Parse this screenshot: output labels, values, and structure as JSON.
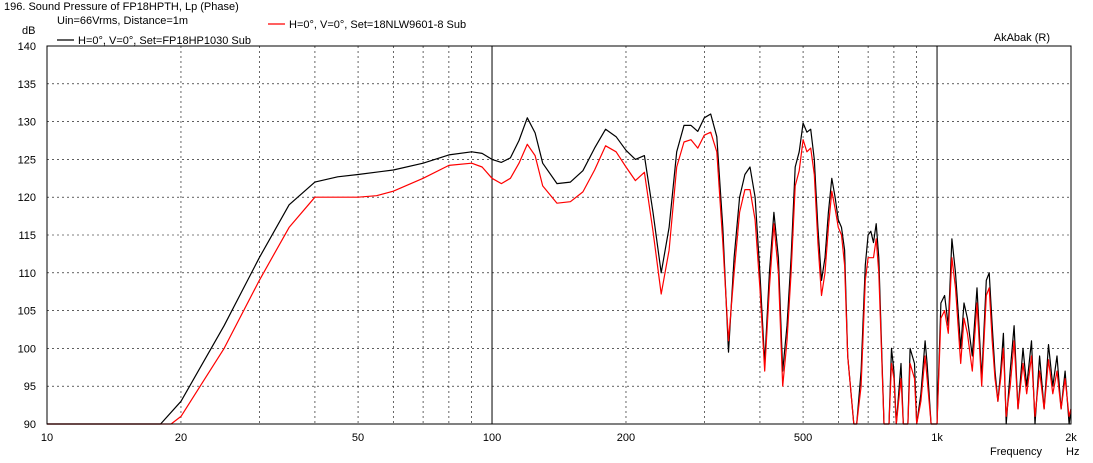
{
  "header": {
    "title": "196. Sound Pressure of FP18HPTH, Lp (Phase)",
    "subtitle": "Uin=66Vrms, Distance=1m",
    "brand": "AkAbak (R)",
    "ylabel": "dB",
    "xlabel": "Frequency",
    "xunit": "Hz"
  },
  "chart_data": {
    "type": "line",
    "title": "196. Sound Pressure of FP18HPTH, Lp (Phase)",
    "subtitle": "Uin=66Vrms, Distance=1m",
    "xlabel": "Frequency",
    "xunit": "Hz",
    "ylabel": "dB",
    "xscale": "log",
    "xlim": [
      10,
      2000
    ],
    "ylim": [
      90,
      140
    ],
    "grid": true,
    "legend_position": "top-left",
    "x_ticks": [
      {
        "value": 10,
        "label": "10"
      },
      {
        "value": 20,
        "label": "20"
      },
      {
        "value": 50,
        "label": "50"
      },
      {
        "value": 100,
        "label": "100"
      },
      {
        "value": 200,
        "label": "200"
      },
      {
        "value": 500,
        "label": "500"
      },
      {
        "value": 1000,
        "label": "1k"
      },
      {
        "value": 2000,
        "label": "2k"
      }
    ],
    "y_ticks": [
      90,
      95,
      100,
      105,
      110,
      115,
      120,
      125,
      130,
      135,
      140
    ],
    "series": [
      {
        "name": "H=0°, V=0°, Set=FP18HP1030 Sub",
        "color": "#000000",
        "points": [
          [
            10,
            90
          ],
          [
            18,
            90
          ],
          [
            20,
            93
          ],
          [
            25,
            103
          ],
          [
            30,
            112
          ],
          [
            35,
            119
          ],
          [
            40,
            122
          ],
          [
            45,
            122.7
          ],
          [
            50,
            123
          ],
          [
            60,
            123.6
          ],
          [
            70,
            124.5
          ],
          [
            80,
            125.6
          ],
          [
            90,
            126
          ],
          [
            95,
            125.8
          ],
          [
            100,
            125
          ],
          [
            105,
            124.6
          ],
          [
            110,
            125.2
          ],
          [
            115,
            127.5
          ],
          [
            120,
            130.5
          ],
          [
            125,
            128.5
          ],
          [
            130,
            124.5
          ],
          [
            140,
            121.8
          ],
          [
            150,
            122
          ],
          [
            160,
            123.5
          ],
          [
            170,
            126.5
          ],
          [
            180,
            129
          ],
          [
            190,
            128
          ],
          [
            200,
            126.2
          ],
          [
            210,
            125
          ],
          [
            220,
            125.5
          ],
          [
            230,
            118
          ],
          [
            240,
            110
          ],
          [
            250,
            116
          ],
          [
            260,
            126
          ],
          [
            270,
            129.5
          ],
          [
            280,
            129.5
          ],
          [
            290,
            128.7
          ],
          [
            300,
            130.5
          ],
          [
            310,
            131
          ],
          [
            320,
            128
          ],
          [
            330,
            116
          ],
          [
            340,
            99.5
          ],
          [
            350,
            112
          ],
          [
            360,
            120
          ],
          [
            370,
            123
          ],
          [
            380,
            124
          ],
          [
            390,
            120
          ],
          [
            400,
            110
          ],
          [
            410,
            98
          ],
          [
            420,
            110
          ],
          [
            430,
            118
          ],
          [
            440,
            112
          ],
          [
            450,
            97
          ],
          [
            460,
            103
          ],
          [
            470,
            112
          ],
          [
            480,
            124
          ],
          [
            490,
            126
          ],
          [
            500,
            129.8
          ],
          [
            510,
            128.6
          ],
          [
            520,
            129
          ],
          [
            530,
            125
          ],
          [
            540,
            116
          ],
          [
            550,
            109
          ],
          [
            560,
            112
          ],
          [
            570,
            118
          ],
          [
            580,
            122.5
          ],
          [
            590,
            120
          ],
          [
            600,
            117
          ],
          [
            610,
            116
          ],
          [
            620,
            113
          ],
          [
            630,
            99
          ],
          [
            650,
            90
          ],
          [
            660,
            90
          ],
          [
            675,
            97
          ],
          [
            690,
            111
          ],
          [
            700,
            115
          ],
          [
            710,
            115.5
          ],
          [
            720,
            114
          ],
          [
            730,
            116.5
          ],
          [
            740,
            112
          ],
          [
            760,
            90
          ],
          [
            780,
            90
          ],
          [
            790,
            100
          ],
          [
            800,
            97
          ],
          [
            810,
            90
          ],
          [
            830,
            98
          ],
          [
            840,
            90
          ],
          [
            860,
            90
          ],
          [
            870,
            100
          ],
          [
            890,
            98
          ],
          [
            900,
            90
          ],
          [
            920,
            94
          ],
          [
            940,
            101
          ],
          [
            950,
            98
          ],
          [
            970,
            90
          ],
          [
            1000,
            90
          ],
          [
            1020,
            106
          ],
          [
            1040,
            107
          ],
          [
            1060,
            103
          ],
          [
            1080,
            114.5
          ],
          [
            1100,
            110
          ],
          [
            1130,
            100
          ],
          [
            1150,
            106
          ],
          [
            1170,
            104
          ],
          [
            1200,
            99
          ],
          [
            1230,
            108
          ],
          [
            1260,
            96
          ],
          [
            1290,
            109
          ],
          [
            1310,
            110
          ],
          [
            1330,
            103
          ],
          [
            1350,
            97
          ],
          [
            1370,
            93
          ],
          [
            1390,
            97
          ],
          [
            1410,
            102
          ],
          [
            1430,
            90
          ],
          [
            1460,
            97
          ],
          [
            1490,
            103
          ],
          [
            1520,
            92
          ],
          [
            1560,
            100
          ],
          [
            1590,
            95
          ],
          [
            1630,
            101
          ],
          [
            1660,
            90
          ],
          [
            1700,
            99
          ],
          [
            1740,
            92
          ],
          [
            1780,
            100.5
          ],
          [
            1820,
            95
          ],
          [
            1860,
            99
          ],
          [
            1900,
            92
          ],
          [
            1940,
            97
          ],
          [
            1980,
            90
          ],
          [
            2000,
            92
          ]
        ]
      },
      {
        "name": "H=0°, V=0°, Set=18NLW9601-8 Sub",
        "color": "#ff0000",
        "points": [
          [
            10,
            90
          ],
          [
            19,
            90
          ],
          [
            20,
            91
          ],
          [
            25,
            100
          ],
          [
            30,
            109
          ],
          [
            35,
            116
          ],
          [
            40,
            120
          ],
          [
            45,
            120
          ],
          [
            50,
            120
          ],
          [
            55,
            120.2
          ],
          [
            60,
            120.8
          ],
          [
            70,
            122.5
          ],
          [
            80,
            124.2
          ],
          [
            90,
            124.5
          ],
          [
            95,
            124
          ],
          [
            100,
            122.5
          ],
          [
            105,
            121.8
          ],
          [
            110,
            122.5
          ],
          [
            115,
            124.5
          ],
          [
            120,
            127
          ],
          [
            125,
            125.5
          ],
          [
            130,
            121.5
          ],
          [
            140,
            119.2
          ],
          [
            150,
            119.4
          ],
          [
            160,
            120.7
          ],
          [
            170,
            123.6
          ],
          [
            180,
            126.8
          ],
          [
            190,
            126
          ],
          [
            200,
            124
          ],
          [
            210,
            122.2
          ],
          [
            220,
            123.3
          ],
          [
            230,
            115.5
          ],
          [
            240,
            107.2
          ],
          [
            250,
            113
          ],
          [
            260,
            124
          ],
          [
            270,
            127.3
          ],
          [
            280,
            127.6
          ],
          [
            290,
            126.5
          ],
          [
            300,
            128.2
          ],
          [
            310,
            128.6
          ],
          [
            320,
            126
          ],
          [
            330,
            114
          ],
          [
            340,
            101
          ],
          [
            350,
            110
          ],
          [
            360,
            118
          ],
          [
            370,
            121
          ],
          [
            380,
            121
          ],
          [
            390,
            117
          ],
          [
            400,
            108
          ],
          [
            410,
            97
          ],
          [
            420,
            108
          ],
          [
            430,
            116.5
          ],
          [
            440,
            110
          ],
          [
            450,
            95
          ],
          [
            460,
            101
          ],
          [
            470,
            110
          ],
          [
            480,
            121.5
          ],
          [
            490,
            123.5
          ],
          [
            500,
            127.6
          ],
          [
            510,
            126
          ],
          [
            520,
            126.5
          ],
          [
            530,
            123
          ],
          [
            540,
            114
          ],
          [
            550,
            107
          ],
          [
            560,
            110
          ],
          [
            570,
            116
          ],
          [
            580,
            120.8
          ],
          [
            590,
            118.5
          ],
          [
            600,
            116
          ],
          [
            610,
            115
          ],
          [
            620,
            111
          ],
          [
            630,
            99
          ],
          [
            650,
            90
          ],
          [
            660,
            90
          ],
          [
            675,
            95
          ],
          [
            690,
            109
          ],
          [
            700,
            112
          ],
          [
            710,
            112
          ],
          [
            720,
            112
          ],
          [
            730,
            114.5
          ],
          [
            740,
            110
          ],
          [
            760,
            90
          ],
          [
            780,
            90
          ],
          [
            790,
            98
          ],
          [
            800,
            96
          ],
          [
            810,
            90
          ],
          [
            830,
            96
          ],
          [
            840,
            90
          ],
          [
            860,
            90
          ],
          [
            870,
            98
          ],
          [
            890,
            96
          ],
          [
            900,
            90
          ],
          [
            920,
            93
          ],
          [
            940,
            99
          ],
          [
            950,
            96
          ],
          [
            970,
            90
          ],
          [
            1000,
            90
          ],
          [
            1020,
            104
          ],
          [
            1040,
            105
          ],
          [
            1060,
            102
          ],
          [
            1080,
            112
          ],
          [
            1100,
            108
          ],
          [
            1130,
            98
          ],
          [
            1150,
            104
          ],
          [
            1170,
            102
          ],
          [
            1200,
            97
          ],
          [
            1230,
            106
          ],
          [
            1260,
            95
          ],
          [
            1290,
            107
          ],
          [
            1310,
            108
          ],
          [
            1330,
            101
          ],
          [
            1350,
            96
          ],
          [
            1370,
            93
          ],
          [
            1390,
            96
          ],
          [
            1410,
            100
          ],
          [
            1430,
            91
          ],
          [
            1460,
            95
          ],
          [
            1490,
            101
          ],
          [
            1520,
            92
          ],
          [
            1560,
            98
          ],
          [
            1590,
            94
          ],
          [
            1630,
            99
          ],
          [
            1660,
            91
          ],
          [
            1700,
            97
          ],
          [
            1740,
            92
          ],
          [
            1780,
            98.5
          ],
          [
            1820,
            94
          ],
          [
            1860,
            97
          ],
          [
            1900,
            92
          ],
          [
            1940,
            96
          ],
          [
            1980,
            91
          ],
          [
            2000,
            92
          ]
        ]
      }
    ]
  }
}
